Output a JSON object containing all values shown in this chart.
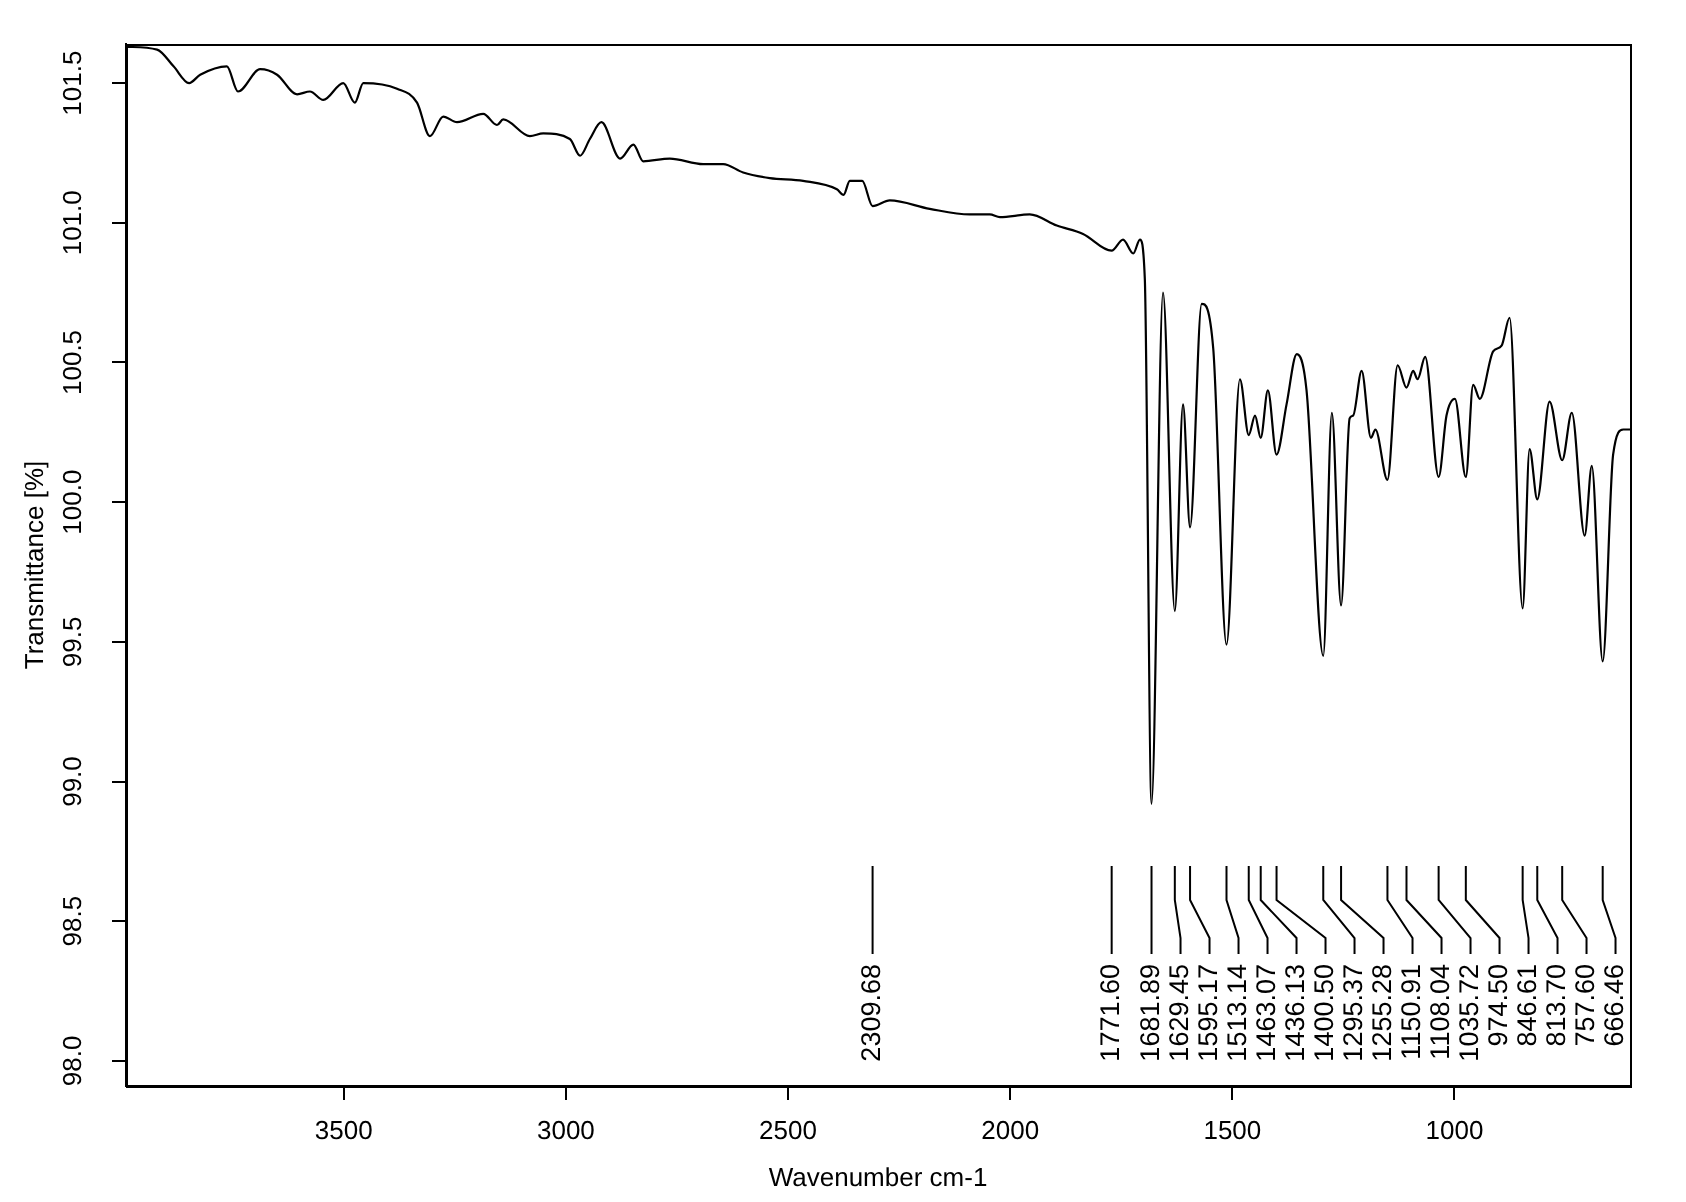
{
  "chart_data": {
    "type": "line",
    "xlabel": "Wavenumber cm-1",
    "ylabel": "Transmittance [%]",
    "xlim": [
      3990,
      605
    ],
    "xticks": [
      3500,
      3000,
      2500,
      2000,
      1500,
      1000
    ],
    "ylim": [
      97.91,
      101.64
    ],
    "yticks": [
      {
        "value": 98,
        "label": "98.0"
      },
      98.5,
      {
        "value": 99,
        "label": "99.0"
      },
      99.5,
      {
        "value": 100,
        "label": "100.0"
      },
      100.5,
      {
        "value": 101,
        "label": "101.0"
      },
      101.5
    ],
    "grid": false,
    "marker": "none",
    "color": "#000000",
    "x": [
      3990,
      3920,
      3883,
      3848,
      3823,
      3763,
      3738,
      3688,
      3650,
      3605,
      3576,
      3546,
      3501,
      3475,
      3456,
      3380,
      3335,
      3306,
      3276,
      3245,
      3186,
      3155,
      3141,
      3081,
      3051,
      2991,
      2968,
      2946,
      2920,
      2878,
      2848,
      2826,
      2766,
      2691,
      2646,
      2601,
      2541,
      2466,
      2390,
      2375,
      2361,
      2333,
      2309.68,
      2271,
      2181,
      2091,
      2046,
      2023,
      1956,
      1895,
      1836,
      1771.6,
      1746,
      1723,
      1708,
      1697,
      1681.89,
      1656,
      1629.45,
      1611,
      1595.17,
      1569,
      1543,
      1513.14,
      1483,
      1463.07,
      1449,
      1436.13,
      1420,
      1400.5,
      1378,
      1355,
      1333,
      1295.37,
      1276,
      1255.28,
      1236,
      1228,
      1209,
      1188,
      1178,
      1150.91,
      1128,
      1108.04,
      1093,
      1083,
      1066,
      1035.72,
      1018,
      999,
      974.5,
      958,
      943,
      913,
      894,
      876,
      846.61,
      831,
      813.7,
      786,
      757.6,
      736,
      707,
      691,
      666.46,
      643,
      620,
      605
    ],
    "values": [
      101.63,
      101.62,
      101.56,
      101.5,
      101.53,
      101.56,
      101.47,
      101.55,
      101.53,
      101.46,
      101.47,
      101.44,
      101.5,
      101.43,
      101.5,
      101.48,
      101.43,
      101.31,
      101.38,
      101.36,
      101.39,
      101.35,
      101.37,
      101.31,
      101.32,
      101.3,
      101.24,
      101.3,
      101.36,
      101.23,
      101.28,
      101.22,
      101.23,
      101.21,
      101.21,
      101.18,
      101.16,
      101.15,
      101.12,
      101.1,
      101.15,
      101.15,
      101.06,
      101.08,
      101.05,
      101.03,
      101.03,
      101.02,
      101.03,
      100.99,
      100.96,
      100.9,
      100.94,
      100.89,
      100.94,
      100.8,
      98.92,
      100.75,
      99.61,
      100.35,
      99.91,
      100.71,
      100.55,
      99.49,
      100.44,
      100.24,
      100.31,
      100.23,
      100.4,
      100.17,
      100.35,
      100.53,
      100.4,
      99.45,
      100.32,
      99.63,
      100.3,
      100.31,
      100.47,
      100.23,
      100.26,
      100.08,
      100.49,
      100.41,
      100.47,
      100.44,
      100.52,
      100.09,
      100.31,
      100.37,
      100.09,
      100.42,
      100.37,
      100.54,
      100.56,
      100.66,
      99.62,
      100.19,
      100.01,
      100.36,
      100.15,
      100.32,
      99.88,
      100.13,
      99.43,
      100.17,
      100.26,
      100.26
    ],
    "annotations": [
      {
        "text": "2309.68",
        "x": 2309.68
      },
      {
        "text": "1771.60",
        "x": 1771.6
      },
      {
        "text": "1681.89",
        "x": 1681.89
      },
      {
        "text": "1629.45",
        "x": 1629.45
      },
      {
        "text": "1595.17",
        "x": 1595.17
      },
      {
        "text": "1513.14",
        "x": 1513.14
      },
      {
        "text": "1463.07",
        "x": 1463.07
      },
      {
        "text": "1436.13",
        "x": 1436.13
      },
      {
        "text": "1400.50",
        "x": 1400.5
      },
      {
        "text": "1295.37",
        "x": 1295.37
      },
      {
        "text": "1255.28",
        "x": 1255.28
      },
      {
        "text": "1150.91",
        "x": 1150.91
      },
      {
        "text": "1108.04",
        "x": 1108.04
      },
      {
        "text": "1035.72",
        "x": 1035.72
      },
      {
        "text": "974.50",
        "x": 974.5
      },
      {
        "text": "846.61",
        "x": 846.61
      },
      {
        "text": "813.70",
        "x": 813.7
      },
      {
        "text": "757.60",
        "x": 757.6
      },
      {
        "text": "666.46",
        "x": 666.46
      }
    ]
  }
}
